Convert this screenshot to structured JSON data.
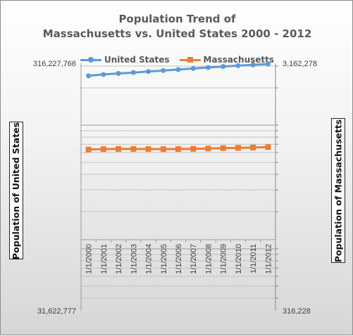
{
  "chart_data": {
    "type": "line",
    "title_lines": [
      "Population Trend of",
      "Massachusetts vs. United States 2000 - 2012"
    ],
    "categories": [
      "1/1/2000",
      "1/1/2001",
      "1/1/2002",
      "1/1/2003",
      "1/1/2004",
      "1/1/2005",
      "1/1/2006",
      "1/1/2007",
      "1/1/2008",
      "1/1/2009",
      "1/1/2010",
      "1/1/2011",
      "1/1/2012"
    ],
    "y_left": {
      "label": "Population of United States",
      "scale": "log",
      "tick_labels": [
        "316,227,766",
        "31,622,777"
      ],
      "range": [
        31622777,
        316227766
      ]
    },
    "y_right": {
      "label": "Population of Massachusetts",
      "scale": "log",
      "tick_labels": [
        "3,162,278",
        "316,228"
      ],
      "range": [
        316228,
        31622777
      ]
    },
    "series": [
      {
        "name": "United States",
        "axis": "left",
        "color": "#5b9bd5",
        "marker": "circle",
        "values": [
          281400000,
          284900000,
          287600000,
          290100000,
          292800000,
          295500000,
          298400000,
          301200000,
          304100000,
          306800000,
          309300000,
          311600000,
          313900000
        ]
      },
      {
        "name": "Massachusetts",
        "axis": "right",
        "color": "#ed7d31",
        "marker": "square",
        "values": [
          6349000,
          6397000,
          6417000,
          6422000,
          6412000,
          6403000,
          6410000,
          6431000,
          6469000,
          6518000,
          6548000,
          6587000,
          6645000
        ]
      }
    ],
    "legend_position": "top",
    "grid": true
  }
}
